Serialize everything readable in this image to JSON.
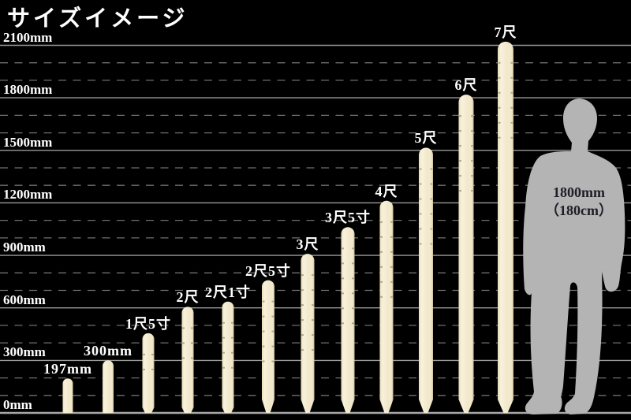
{
  "title": "サイズイメージ",
  "chart_data": {
    "type": "bar",
    "title": "サイズイメージ",
    "orientation": "vertical",
    "unit": "mm",
    "y_axis": {
      "ticks_mm": [
        0,
        300,
        600,
        900,
        1200,
        1500,
        1800,
        2100
      ],
      "tick_labels": [
        "0mm",
        "300mm",
        "600mm",
        "900mm",
        "1200mm",
        "1500mm",
        "1800mm",
        "2100mm"
      ],
      "minor_grid_step_mm": 100,
      "ylim": [
        0,
        2200
      ],
      "grid": "major-solid, minor-dashed"
    },
    "bars": [
      {
        "label": "197mm",
        "value_mm": 197,
        "tip": "flat"
      },
      {
        "label": "300mm",
        "value_mm": 300,
        "tip": "flat"
      },
      {
        "label": "1尺5寸",
        "value_mm": 455,
        "tip": "chamfer"
      },
      {
        "label": "2尺",
        "value_mm": 606,
        "tip": "chamfer"
      },
      {
        "label": "2尺1寸",
        "value_mm": 636,
        "tip": "chamfer"
      },
      {
        "label": "2尺5寸",
        "value_mm": 758,
        "tip": "point"
      },
      {
        "label": "3尺",
        "value_mm": 909,
        "tip": "point"
      },
      {
        "label": "3尺5寸",
        "value_mm": 1061,
        "tip": "point"
      },
      {
        "label": "4尺",
        "value_mm": 1212,
        "tip": "point"
      },
      {
        "label": "5尺",
        "value_mm": 1515,
        "tip": "point"
      },
      {
        "label": "6尺",
        "value_mm": 1818,
        "tip": "point"
      },
      {
        "label": "7尺",
        "value_mm": 2121,
        "tip": "point"
      }
    ],
    "reference_figure": {
      "type": "human-silhouette",
      "height_mm": 1800,
      "label_line1": "1800mm",
      "label_line2": "（180cm）"
    },
    "colors": {
      "background": "#000000",
      "text": "#ffffff",
      "grid_major": "#9a9a9a",
      "grid_minor": "#6f6f6f",
      "baseline": "#a8a8a8",
      "bar_edge_light": "#e7ddb9",
      "bar_highlight": "#f9f2dc",
      "bar_body": "#f2e9cd",
      "bar_edge_dark": "#cfc49e",
      "bar_notch": "#b4a87f",
      "figure_fill": "#b4b4b4",
      "figure_text": "#1e1e26"
    }
  }
}
